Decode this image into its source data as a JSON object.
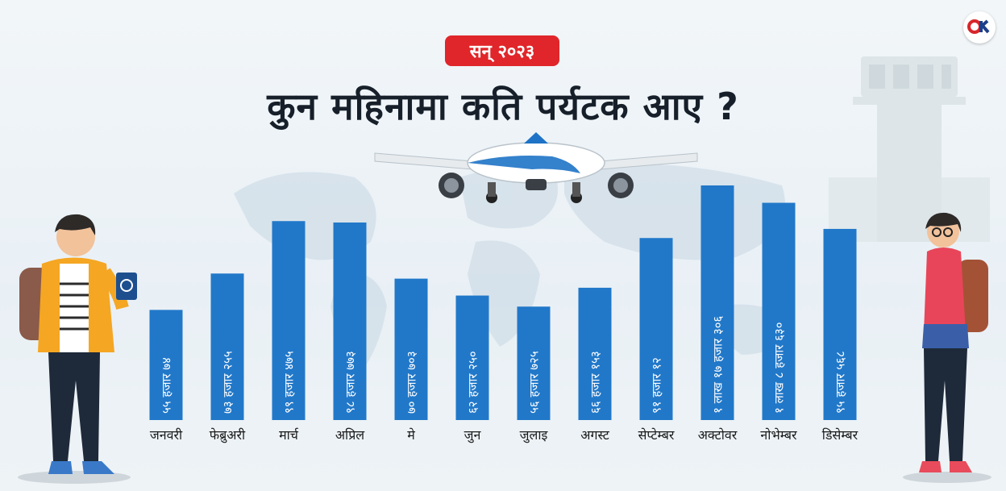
{
  "logo": {
    "text": "OK",
    "icon": "onlinekhabar-logo"
  },
  "header": {
    "badge": "सन् २०२३",
    "title": "कुन महिनामा कति पर्यटक आए ?"
  },
  "colors": {
    "bar": "#2178c9",
    "badge": "#e0262a",
    "bar_label": "#ffffff",
    "title": "#17202a"
  },
  "chart_data": {
    "type": "bar",
    "title": "कुन महिनामा कति पर्यटक आए ?",
    "categories": [
      "जनवरी",
      "फेब्रुअरी",
      "मार्च",
      "अप्रिल",
      "मे",
      "जुन",
      "जुलाइ",
      "अगस्ट",
      "सेप्टेम्बर",
      "अक्टोवर",
      "नोभेम्बर",
      "डिसेम्बर"
    ],
    "values": [
      55074,
      73255,
      99475,
      98773,
      70703,
      62250,
      56725,
      66153,
      91012,
      117306,
      108630,
      95568
    ],
    "bar_labels": [
      "५५ हजार ७४",
      "७३ हजार २५५",
      "९९ हजार ४७५",
      "९८ हजार ७७३",
      "७० हजार ७०३",
      "६२ हजार २५०",
      "५६ हजार ७२५",
      "६६ हजार १५३",
      "९१ हजार १२",
      "१ लाख १७ हजार ३०६",
      "१ लाख ८ हजार ६३०",
      "९५ हजार ५६८"
    ],
    "xlabel": "",
    "ylabel": "",
    "grid": false,
    "legend": "none"
  }
}
